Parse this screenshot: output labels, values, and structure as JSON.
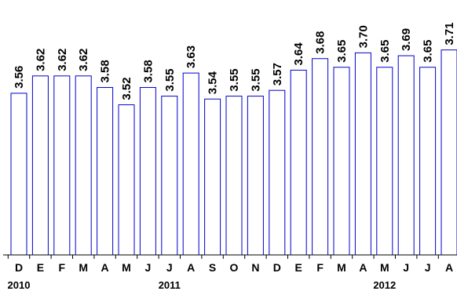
{
  "chart_data": {
    "type": "bar",
    "categories": [
      "D",
      "E",
      "F",
      "M",
      "A",
      "M",
      "J",
      "J",
      "A",
      "S",
      "O",
      "N",
      "D",
      "E",
      "F",
      "M",
      "A",
      "M",
      "J",
      "J",
      "A"
    ],
    "values": [
      3.56,
      3.62,
      3.62,
      3.62,
      3.58,
      3.52,
      3.58,
      3.55,
      3.63,
      3.54,
      3.55,
      3.55,
      3.57,
      3.64,
      3.68,
      3.65,
      3.7,
      3.65,
      3.69,
      3.65,
      3.71
    ],
    "value_labels": [
      "3.56",
      "3.62",
      "3.62",
      "3.62",
      "3.58",
      "3.52",
      "3.58",
      "3.55",
      "3.63",
      "3.54",
      "3.55",
      "3.55",
      "3.57",
      "3.64",
      "3.68",
      "3.65",
      "3.70",
      "3.65",
      "3.69",
      "3.65",
      "3.71"
    ],
    "year_labels": [
      {
        "text": "2010",
        "category_index": 0
      },
      {
        "text": "2011",
        "category_index": 7
      },
      {
        "text": "2012",
        "category_index": 17
      }
    ],
    "ylim": [
      3.0,
      3.72
    ],
    "grid": false,
    "colors": {
      "bar_fill": "#ffffff",
      "bar_stroke": "#0000cc",
      "axis": "#000000",
      "text": "#000000"
    }
  }
}
